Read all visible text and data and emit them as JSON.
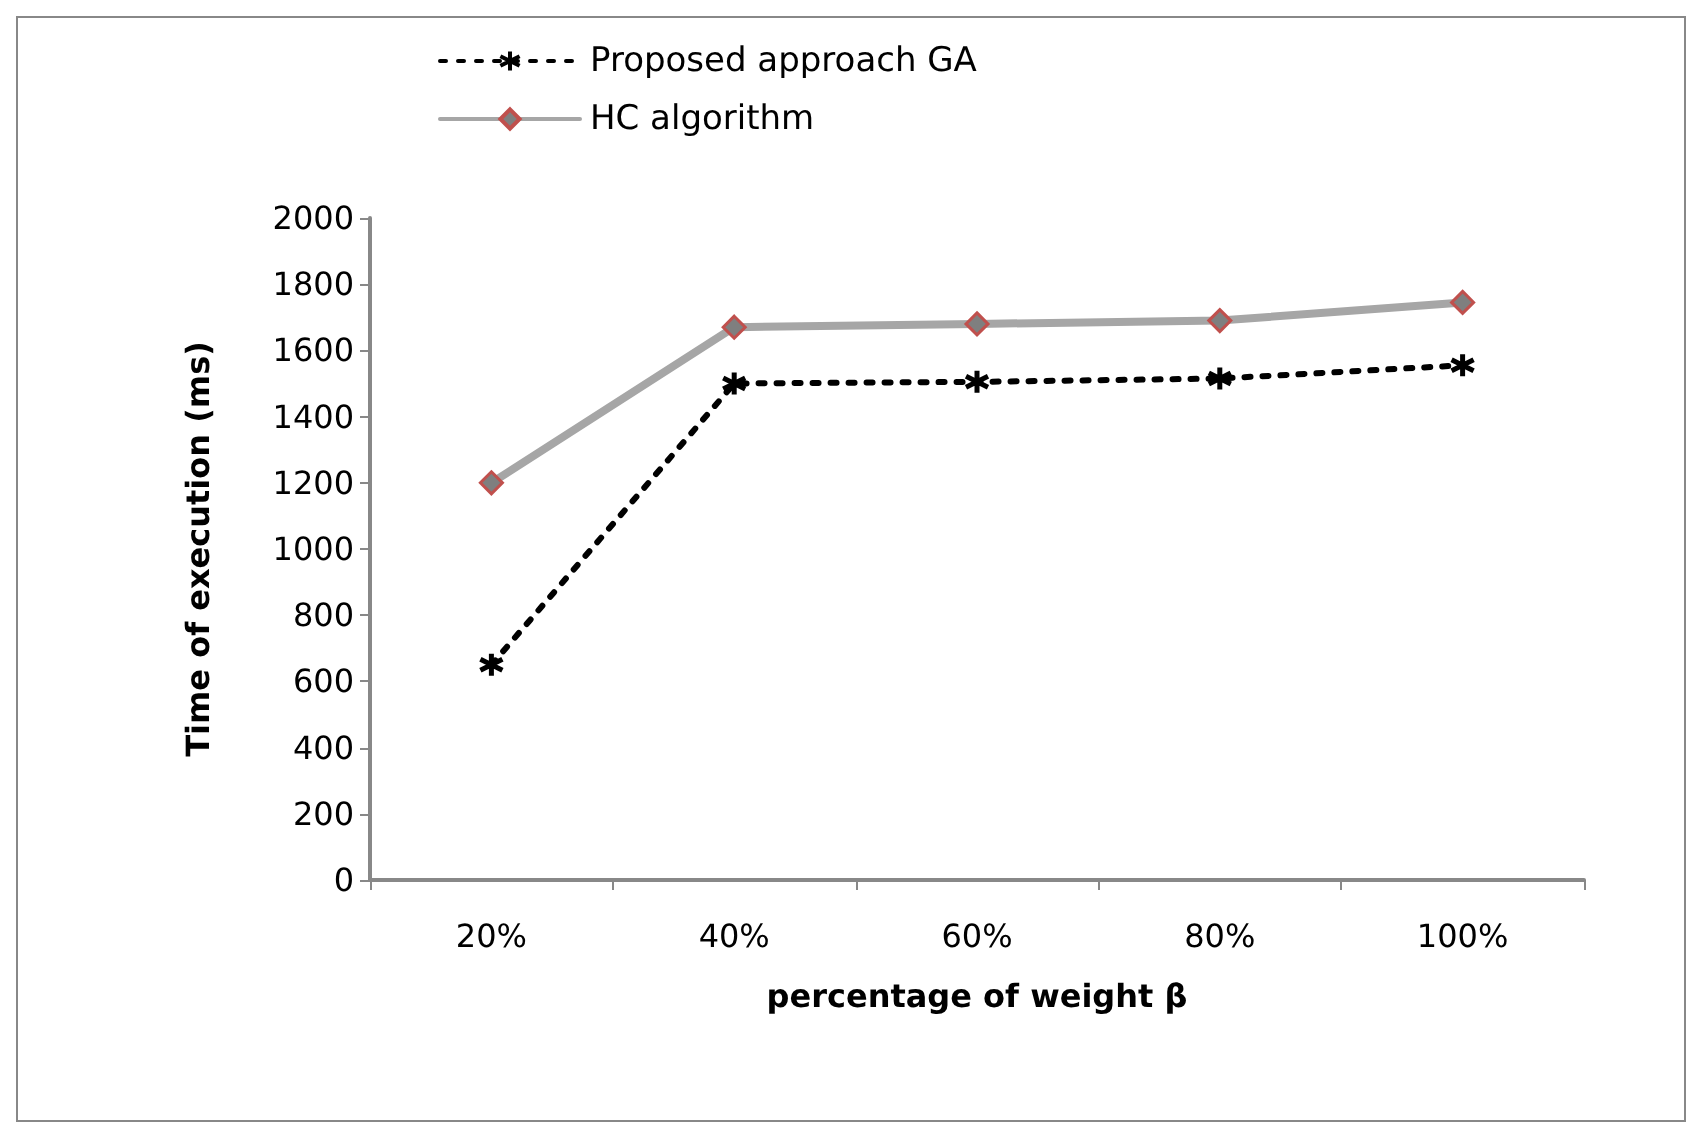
{
  "chart_data": {
    "type": "line",
    "xlabel": "percentage of weight β",
    "ylabel": "Time of execution (ms)",
    "categories": [
      "20%",
      "40%",
      "60%",
      "80%",
      "100%"
    ],
    "series": [
      {
        "name": "Proposed approach GA",
        "color": "#000000",
        "values": [
          650,
          1500,
          1505,
          1515,
          1555
        ],
        "marker": "cross",
        "line_style": "dotted"
      },
      {
        "name": "HC algorithm",
        "color": "#a6a6a6",
        "values": [
          1200,
          1670,
          1680,
          1690,
          1745
        ],
        "marker": "diamond",
        "line_style": "solid"
      }
    ],
    "ylim": [
      0,
      2000
    ],
    "yticks": [
      0,
      200,
      400,
      600,
      800,
      1000,
      1200,
      1400,
      1600,
      1800,
      2000
    ],
    "grid": false,
    "legend": "top left"
  }
}
